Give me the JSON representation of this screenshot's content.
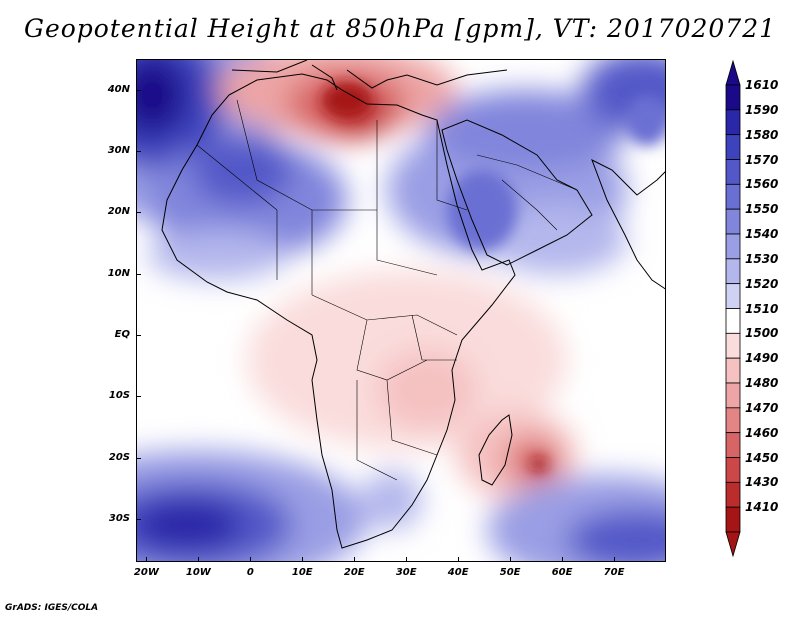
{
  "title": "Geopotential Height at 850hPa [gpm], VT: 2017020721",
  "credit": "GrADS: IGES/COLA",
  "map": {
    "variable": "Geopotential Height at 850hPa",
    "units": "gpm",
    "valid_time": "2017020721",
    "region": "Africa / Middle East / Indian Ocean",
    "lon_range": [
      -22,
      80
    ],
    "lat_range": [
      -37,
      45
    ],
    "lat_labels": [
      {
        "value": 40,
        "label": "40N"
      },
      {
        "value": 30,
        "label": "30N"
      },
      {
        "value": 20,
        "label": "20N"
      },
      {
        "value": 10,
        "label": "10N"
      },
      {
        "value": 0,
        "label": "EQ"
      },
      {
        "value": -10,
        "label": "10S"
      },
      {
        "value": -20,
        "label": "20S"
      },
      {
        "value": -30,
        "label": "30S"
      }
    ],
    "lon_labels": [
      {
        "value": -20,
        "label": "20W"
      },
      {
        "value": -10,
        "label": "10W"
      },
      {
        "value": 0,
        "label": "0"
      },
      {
        "value": 10,
        "label": "10E"
      },
      {
        "value": 20,
        "label": "20E"
      },
      {
        "value": 30,
        "label": "30E"
      },
      {
        "value": 40,
        "label": "40E"
      },
      {
        "value": 50,
        "label": "50E"
      },
      {
        "value": 60,
        "label": "60E"
      },
      {
        "value": 70,
        "label": "70E"
      }
    ]
  },
  "colorbar": {
    "levels": [
      "1610",
      "1590",
      "1580",
      "1570",
      "1560",
      "1550",
      "1540",
      "1530",
      "1520",
      "1510",
      "1500",
      "1490",
      "1480",
      "1470",
      "1460",
      "1450",
      "1430",
      "1410"
    ],
    "colors": [
      "#1a0a8a",
      "#2a27a8",
      "#3d42bd",
      "#5258c8",
      "#6a70d3",
      "#8185dc",
      "#9a9ee4",
      "#b4b7ec",
      "#d0d2f4",
      "#ffffff",
      "#fadcdc",
      "#f5c1c1",
      "#eda5a5",
      "#e48585",
      "#d86565",
      "#cc4848",
      "#bb2c2c",
      "#a51515"
    ],
    "top_cap_color": "#1a0a8a",
    "bottom_cap_color": "#a51515"
  },
  "colors": {
    "strong_high": "#1a0a8a",
    "high": "#6a70d3",
    "light_high": "#d0d2f4",
    "neutral": "#ffffff",
    "light_low": "#fadcdc",
    "low": "#d86565",
    "strong_low": "#a51515"
  }
}
